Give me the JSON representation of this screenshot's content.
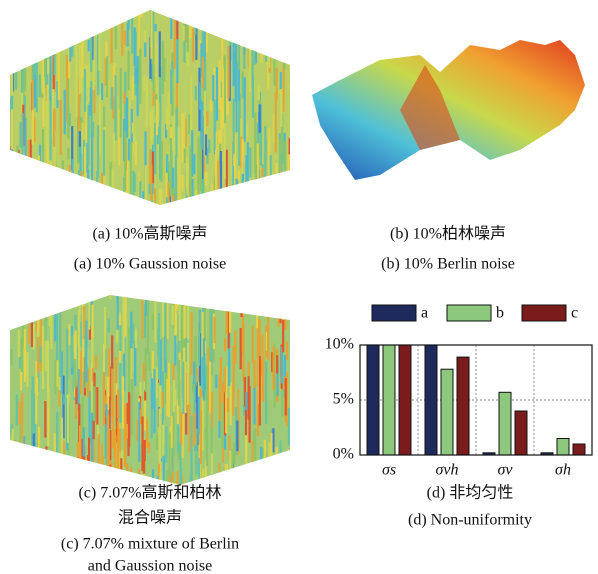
{
  "panels": [
    {
      "caption_cn": "(a) 10%高斯噪声",
      "caption_en": "(a) 10% Gaussion noise"
    },
    {
      "caption_cn": "(b) 10%柏林噪声",
      "caption_en": "(b) 10% Berlin noise"
    },
    {
      "caption_cn_1": "(c) 7.07%高斯和柏林",
      "caption_cn_2": "混合噪声",
      "caption_en_1": "(c) 7.07% mixture of Berlin",
      "caption_en_2": "and Gaussion noise"
    },
    {
      "caption_cn": "(d) 非均匀性",
      "caption_en": "(d) Non-uniformity"
    }
  ],
  "chart_data": {
    "type": "bar",
    "categories": [
      "σs",
      "σvh",
      "σv",
      "σh"
    ],
    "series": [
      {
        "name": "a",
        "color": "#1f2a5c",
        "values": [
          10,
          10,
          0.2,
          0.2
        ]
      },
      {
        "name": "b",
        "color": "#8cc97c",
        "values": [
          10,
          7.8,
          5.7,
          1.5
        ]
      },
      {
        "name": "c",
        "color": "#7a1c1c",
        "values": [
          10,
          8.9,
          4.0,
          1.0
        ]
      }
    ],
    "ylim": [
      0,
      10
    ],
    "yticks": [
      {
        "value": 0,
        "label": "0%"
      },
      {
        "value": 5,
        "label": "5%"
      },
      {
        "value": 10,
        "label": "10%"
      }
    ],
    "grid": true
  }
}
